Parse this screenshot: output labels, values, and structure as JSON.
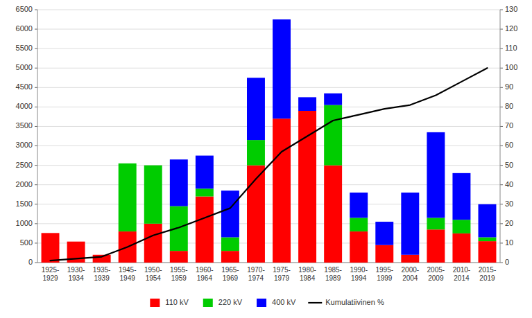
{
  "chart_data": {
    "type": "bar",
    "stacked": true,
    "categories": [
      "1925-\n1929",
      "1930-\n1934",
      "1935-\n1939",
      "1945-\n1949",
      "1950-\n1954",
      "1955-\n1959",
      "1960-\n1964",
      "1965-\n1969",
      "1970-\n1974",
      "1975-\n1979",
      "1980-\n1984",
      "1985-\n1989",
      "1990-\n1994",
      "1995-\n1999",
      "2000-\n2004",
      "2005-\n2009",
      "2010-\n2014",
      "2015-\n2019"
    ],
    "series": [
      {
        "name": "110 kV",
        "color": "#FF0000",
        "values": [
          760,
          540,
          200,
          800,
          1000,
          300,
          1700,
          300,
          2500,
          3700,
          3900,
          2500,
          800,
          450,
          200,
          850,
          750,
          550
        ]
      },
      {
        "name": "220 kV",
        "color": "#00CC00",
        "values": [
          0,
          0,
          0,
          1750,
          1500,
          1150,
          200,
          350,
          650,
          0,
          0,
          1550,
          350,
          0,
          0,
          300,
          350,
          100
        ]
      },
      {
        "name": "400 kV",
        "color": "#0000FF",
        "values": [
          0,
          0,
          0,
          0,
          0,
          1200,
          850,
          1200,
          1600,
          2550,
          350,
          300,
          650,
          600,
          1600,
          2200,
          1200,
          850
        ]
      },
      {
        "name": "Kumulatiivinen %",
        "type": "line",
        "axis": "y2",
        "color": "#000000",
        "values": [
          1,
          2,
          3,
          8,
          14,
          18,
          23,
          28,
          43,
          57,
          65,
          73,
          76,
          79,
          81,
          86,
          93,
          100
        ]
      }
    ],
    "ylim": [
      0,
      6500
    ],
    "yticks": [
      0,
      500,
      1000,
      1500,
      2000,
      2500,
      3000,
      3500,
      4000,
      4500,
      5000,
      5500,
      6000,
      6500
    ],
    "y2lim": [
      0,
      130
    ],
    "y2ticks": [
      0,
      10,
      20,
      30,
      40,
      50,
      60,
      70,
      80,
      90,
      100,
      110,
      120,
      130
    ],
    "grid": true,
    "legend": "bottom"
  }
}
